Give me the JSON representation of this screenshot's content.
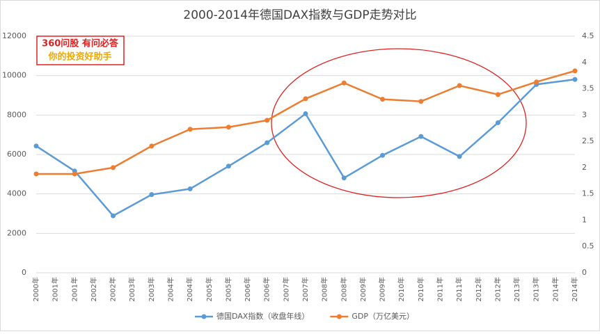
{
  "chart_data": {
    "type": "line",
    "title": "2000-2014年德国DAX指数与GDP走势对比",
    "watermark": [
      "360问股 有问必答",
      "你的投资好助手"
    ],
    "categories": [
      "2000年",
      "2001年",
      "2002年",
      "2003年",
      "2004年",
      "2005年",
      "2006年",
      "2007年",
      "2008年",
      "2009年",
      "2010年",
      "2011年",
      "2012年",
      "2013年",
      "2014年"
    ],
    "x_axis_labels": [
      "2000年",
      "2001年",
      "2001年",
      "2002年",
      "2002年",
      "2003年",
      "2003年",
      "2004年",
      "2004年",
      "2005年",
      "2005年",
      "2006年",
      "2006年",
      "2007年",
      "2007年",
      "2008年",
      "2008年",
      "2009年",
      "2009年",
      "2010年",
      "2010年",
      "2011年",
      "2011年",
      "2012年",
      "2012年",
      "2013年",
      "2013年",
      "2014年",
      "2014年"
    ],
    "series": [
      {
        "name": "德国DAX指数（收盘年线）",
        "color": "#5b9bd5",
        "axis": "y",
        "values": [
          6430,
          5160,
          2890,
          3965,
          4256,
          5408,
          6597,
          8067,
          4810,
          5957,
          6914,
          5898,
          7612,
          9552,
          9806
        ]
      },
      {
        "name": "GDP（万亿美元）",
        "color": "#ed7d31",
        "axis": "y2",
        "values": [
          1.88,
          1.88,
          2.0,
          2.41,
          2.73,
          2.77,
          2.9,
          3.31,
          3.61,
          3.3,
          3.26,
          3.56,
          3.39,
          3.63,
          3.84
        ]
      }
    ],
    "ylim": [
      0,
      12000
    ],
    "yticks": [
      0,
      2000,
      4000,
      6000,
      8000,
      10000,
      12000
    ],
    "y2lim": [
      0,
      4.5
    ],
    "y2ticks": [
      0,
      0.5,
      1,
      1.5,
      2,
      2.5,
      3,
      3.5,
      4,
      4.5
    ],
    "grid": true,
    "legend": "bottom"
  }
}
